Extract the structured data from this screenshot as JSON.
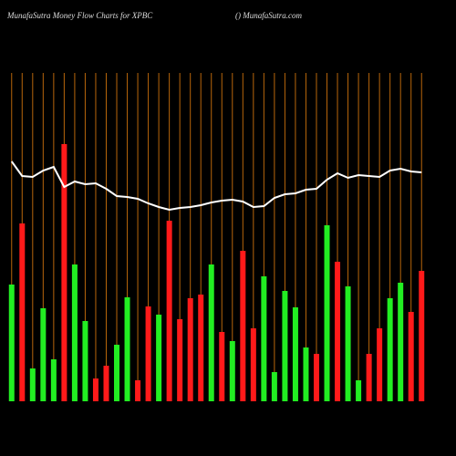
{
  "chart_data": {
    "type": "bar",
    "title": "MunafaSutra  Money Flow  Charts for XPBC",
    "subtitle": "() MunafaSutra.com",
    "categories": [
      null,
      null,
      null,
      null,
      null,
      null,
      null,
      null,
      null,
      null,
      null,
      null,
      null,
      null,
      null,
      null,
      null,
      null,
      null,
      null,
      null,
      null,
      null,
      null,
      null,
      null,
      null,
      null,
      null,
      null,
      null,
      null,
      null,
      null,
      null,
      null,
      null,
      null,
      null,
      null
    ],
    "values": [
      128,
      195,
      36,
      102,
      46,
      282,
      150,
      88,
      25,
      39,
      62,
      114,
      23,
      104,
      95,
      198,
      90,
      113,
      117,
      150,
      76,
      66,
      165,
      80,
      137,
      32,
      121,
      103,
      59,
      52,
      193,
      153,
      126,
      23,
      52,
      80,
      113,
      130,
      98,
      143
    ],
    "colors": [
      "#22ee22",
      "#ff1a1a",
      "#22ee22",
      "#22ee22",
      "#22ee22",
      "#ff1a1a",
      "#22ee22",
      "#22ee22",
      "#ff1a1a",
      "#ff1a1a",
      "#22ee22",
      "#22ee22",
      "#ff1a1a",
      "#ff1a1a",
      "#22ee22",
      "#ff1a1a",
      "#ff1a1a",
      "#ff1a1a",
      "#ff1a1a",
      "#22ee22",
      "#ff1a1a",
      "#22ee22",
      "#ff1a1a",
      "#ff1a1a",
      "#22ee22",
      "#22ee22",
      "#22ee22",
      "#22ee22",
      "#22ee22",
      "#ff1a1a",
      "#22ee22",
      "#ff1a1a",
      "#22ee22",
      "#22ee22",
      "#ff1a1a",
      "#ff1a1a",
      "#22ee22",
      "#22ee22",
      "#ff1a1a",
      "#ff1a1a"
    ],
    "line": {
      "color": "#ffffff",
      "values": [
        263,
        247,
        246,
        253,
        257,
        235,
        241,
        238,
        239,
        233,
        225,
        224,
        222,
        217,
        213,
        210,
        212,
        213,
        215,
        218,
        220,
        221,
        219,
        213,
        214,
        223,
        227,
        228,
        232,
        233,
        243,
        250,
        245,
        248,
        247,
        246,
        253,
        255,
        252,
        251
      ]
    },
    "ylim": [
      0,
      360
    ],
    "grid_color": "#b8660b"
  }
}
